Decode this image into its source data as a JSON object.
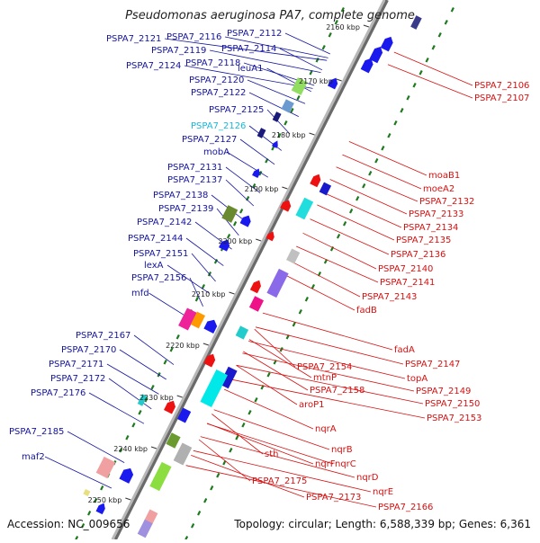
{
  "title": "Pseudomonas aeruginosa PA7, complete genome",
  "accession_label": "Accession: NC_009656",
  "topology_label": "Topology: circular; Length: 6,588,339 bp; Genes: 6,361",
  "colors": {
    "left_label": "#1414a0",
    "highlight_label": "#18b8d8",
    "right_label": "#d81010",
    "axis": "#9a9a9a",
    "dots": "#1d7a1d"
  },
  "ruler": [
    "2160 kbp",
    "2170 kbp",
    "2180 kbp",
    "2190 kbp",
    "2200 kbp",
    "2210 kbp",
    "2220 kbp",
    "2230 kbp",
    "2240 kbp",
    "2250 kbp"
  ],
  "left_labels": [
    "PSPA7_2112",
    "PSPA7_2116",
    "PSPA7_2114",
    "PSPA7_2121",
    "PSPA7_2119",
    "PSPA7_2118",
    "PSPA7_2124",
    "leuA1",
    "PSPA7_2120",
    "PSPA7_2122",
    "PSPA7_2125",
    "PSPA7_2126",
    "PSPA7_2127",
    "mobA",
    "PSPA7_2131",
    "PSPA7_2137",
    "PSPA7_2138",
    "PSPA7_2139",
    "PSPA7_2142",
    "PSPA7_2144",
    "PSPA7_2151",
    "lexA",
    "PSPA7_2156",
    "mfd",
    "PSPA7_2167",
    "PSPA7_2170",
    "PSPA7_2171",
    "PSPA7_2172",
    "PSPA7_2176",
    "PSPA7_2185",
    "maf2"
  ],
  "right_labels": [
    "PSPA7_2106",
    "PSPA7_2107",
    "moaB1",
    "moeA2",
    "PSPA7_2132",
    "PSPA7_2133",
    "PSPA7_2134",
    "PSPA7_2135",
    "PSPA7_2136",
    "PSPA7_2140",
    "PSPA7_2141",
    "PSPA7_2143",
    "fadB",
    "fadA",
    "PSPA7_2147",
    "topA",
    "PSPA7_2154",
    "PSPA7_2149",
    "mtnP",
    "PSPA7_2150",
    "PSPA7_2158",
    "PSPA7_2153",
    "aroP1",
    "nqrA",
    "nqrB",
    "sth",
    "nqrC",
    "nqrF",
    "nqrD",
    "nqrE",
    "PSPA7_2175",
    "PSPA7_2166",
    "PSPA7_2173"
  ]
}
